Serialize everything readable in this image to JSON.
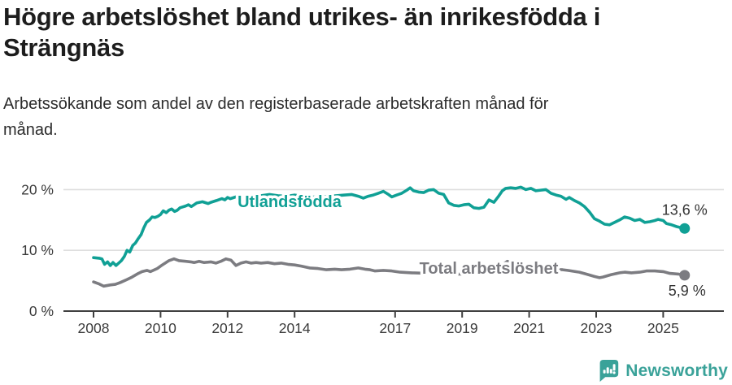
{
  "header": {
    "title_lines": [
      "Högre arbetslöshet bland utrikes- än inrikesfödda i",
      "Strängnäs"
    ],
    "subtitle_lines": [
      "Arbetssökande som andel av den registerbaserade arbetskraften månad för",
      "månad."
    ]
  },
  "chart_data": {
    "type": "line",
    "title": "Högre arbetslöshet bland utrikes- än inrikesfödda i Strängnäs",
    "subtitle": "Arbetssökande som andel av den registerbaserade arbetskraften månad för månad.",
    "xlabel": "",
    "ylabel": "",
    "xlim": [
      2008,
      2025.64
    ],
    "ylim": [
      0,
      21.5
    ],
    "grid": "horizontal-only",
    "x_ticks": [
      2008,
      2010,
      2012,
      2014,
      2017,
      2019,
      2021,
      2023,
      2025
    ],
    "y_ticks": [
      {
        "value": 0,
        "label": "0 %"
      },
      {
        "value": 10,
        "label": "10 %"
      },
      {
        "value": 20,
        "label": "20 %"
      }
    ],
    "colors": {
      "foreign_born": "#10a095",
      "total": "#7c7c81",
      "value_label": "#333333"
    },
    "series": [
      {
        "name": "Utlandsfödda",
        "color": "#10a095",
        "end_label": "13,6 %",
        "end_value": 13.6,
        "points": [
          [
            2008.0,
            8.8
          ],
          [
            2008.17,
            8.7
          ],
          [
            2008.25,
            8.6
          ],
          [
            2008.33,
            7.7
          ],
          [
            2008.42,
            8.1
          ],
          [
            2008.5,
            7.5
          ],
          [
            2008.58,
            8.0
          ],
          [
            2008.67,
            7.5
          ],
          [
            2008.83,
            8.3
          ],
          [
            2008.92,
            9.0
          ],
          [
            2009.0,
            10.0
          ],
          [
            2009.08,
            9.7
          ],
          [
            2009.17,
            10.8
          ],
          [
            2009.25,
            11.2
          ],
          [
            2009.33,
            11.9
          ],
          [
            2009.42,
            12.6
          ],
          [
            2009.5,
            13.7
          ],
          [
            2009.58,
            14.6
          ],
          [
            2009.67,
            15.0
          ],
          [
            2009.75,
            15.5
          ],
          [
            2009.83,
            15.4
          ],
          [
            2009.92,
            15.6
          ],
          [
            2010.0,
            15.9
          ],
          [
            2010.08,
            16.5
          ],
          [
            2010.17,
            16.2
          ],
          [
            2010.25,
            16.6
          ],
          [
            2010.33,
            16.8
          ],
          [
            2010.42,
            16.4
          ],
          [
            2010.5,
            16.6
          ],
          [
            2010.58,
            17.0
          ],
          [
            2010.75,
            17.3
          ],
          [
            2010.83,
            17.5
          ],
          [
            2010.92,
            17.2
          ],
          [
            2011.0,
            17.5
          ],
          [
            2011.08,
            17.8
          ],
          [
            2011.25,
            18.0
          ],
          [
            2011.42,
            17.7
          ],
          [
            2011.5,
            17.9
          ],
          [
            2011.67,
            18.2
          ],
          [
            2011.83,
            18.5
          ],
          [
            2011.92,
            18.3
          ],
          [
            2012.0,
            18.7
          ],
          [
            2012.08,
            18.5
          ],
          [
            2012.25,
            18.8
          ],
          [
            2012.42,
            18.9
          ],
          [
            2012.58,
            19.0
          ],
          [
            2012.75,
            18.8
          ],
          [
            2013.0,
            19.0
          ],
          [
            2013.25,
            19.2
          ],
          [
            2013.5,
            19.0
          ],
          [
            2013.75,
            18.9
          ],
          [
            2014.0,
            19.1
          ],
          [
            2014.25,
            18.9
          ],
          [
            2014.5,
            18.8
          ],
          [
            2014.75,
            18.7
          ],
          [
            2015.0,
            18.9
          ],
          [
            2015.25,
            19.0
          ],
          [
            2015.5,
            19.1
          ],
          [
            2015.7,
            19.2
          ],
          [
            2015.9,
            18.9
          ],
          [
            2016.05,
            18.6
          ],
          [
            2016.2,
            18.9
          ],
          [
            2016.35,
            19.1
          ],
          [
            2016.5,
            19.4
          ],
          [
            2016.65,
            19.7
          ],
          [
            2016.8,
            19.2
          ],
          [
            2016.9,
            18.8
          ],
          [
            2017.05,
            19.1
          ],
          [
            2017.2,
            19.4
          ],
          [
            2017.35,
            19.9
          ],
          [
            2017.45,
            20.3
          ],
          [
            2017.55,
            19.8
          ],
          [
            2017.7,
            19.6
          ],
          [
            2017.85,
            19.5
          ],
          [
            2018.0,
            19.9
          ],
          [
            2018.15,
            20.0
          ],
          [
            2018.3,
            19.4
          ],
          [
            2018.45,
            19.2
          ],
          [
            2018.6,
            17.8
          ],
          [
            2018.75,
            17.4
          ],
          [
            2018.9,
            17.3
          ],
          [
            2019.05,
            17.5
          ],
          [
            2019.2,
            17.6
          ],
          [
            2019.35,
            17.0
          ],
          [
            2019.5,
            16.9
          ],
          [
            2019.65,
            17.1
          ],
          [
            2019.8,
            18.3
          ],
          [
            2019.95,
            17.9
          ],
          [
            2020.1,
            19.0
          ],
          [
            2020.2,
            19.8
          ],
          [
            2020.3,
            20.2
          ],
          [
            2020.45,
            20.3
          ],
          [
            2020.6,
            20.2
          ],
          [
            2020.75,
            20.4
          ],
          [
            2020.9,
            20.0
          ],
          [
            2021.05,
            20.2
          ],
          [
            2021.2,
            19.8
          ],
          [
            2021.35,
            19.9
          ],
          [
            2021.5,
            20.0
          ],
          [
            2021.65,
            19.4
          ],
          [
            2021.8,
            19.1
          ],
          [
            2021.95,
            18.9
          ],
          [
            2022.1,
            18.4
          ],
          [
            2022.2,
            18.7
          ],
          [
            2022.35,
            18.2
          ],
          [
            2022.5,
            17.8
          ],
          [
            2022.65,
            17.2
          ],
          [
            2022.8,
            16.3
          ],
          [
            2022.95,
            15.2
          ],
          [
            2023.1,
            14.8
          ],
          [
            2023.25,
            14.3
          ],
          [
            2023.4,
            14.2
          ],
          [
            2023.55,
            14.6
          ],
          [
            2023.7,
            15.0
          ],
          [
            2023.85,
            15.5
          ],
          [
            2024.0,
            15.3
          ],
          [
            2024.15,
            14.9
          ],
          [
            2024.3,
            15.1
          ],
          [
            2024.45,
            14.6
          ],
          [
            2024.6,
            14.7
          ],
          [
            2024.75,
            14.9
          ],
          [
            2024.85,
            15.1
          ],
          [
            2025.0,
            14.9
          ],
          [
            2025.1,
            14.4
          ],
          [
            2025.25,
            14.2
          ],
          [
            2025.4,
            13.9
          ],
          [
            2025.55,
            13.7
          ],
          [
            2025.64,
            13.6
          ]
        ]
      },
      {
        "name": "Total arbetslöshet",
        "color": "#7c7c81",
        "end_label": "5,9 %",
        "end_value": 5.9,
        "points": [
          [
            2008.0,
            4.8
          ],
          [
            2008.15,
            4.5
          ],
          [
            2008.3,
            4.1
          ],
          [
            2008.5,
            4.3
          ],
          [
            2008.65,
            4.4
          ],
          [
            2008.8,
            4.7
          ],
          [
            2009.0,
            5.2
          ],
          [
            2009.15,
            5.6
          ],
          [
            2009.3,
            6.1
          ],
          [
            2009.45,
            6.5
          ],
          [
            2009.6,
            6.7
          ],
          [
            2009.7,
            6.5
          ],
          [
            2009.9,
            7.0
          ],
          [
            2010.05,
            7.6
          ],
          [
            2010.25,
            8.3
          ],
          [
            2010.4,
            8.6
          ],
          [
            2010.55,
            8.3
          ],
          [
            2010.75,
            8.2
          ],
          [
            2010.9,
            8.1
          ],
          [
            2011.0,
            8.0
          ],
          [
            2011.15,
            8.2
          ],
          [
            2011.3,
            8.0
          ],
          [
            2011.5,
            8.1
          ],
          [
            2011.65,
            7.9
          ],
          [
            2011.8,
            8.2
          ],
          [
            2011.95,
            8.6
          ],
          [
            2012.1,
            8.4
          ],
          [
            2012.25,
            7.5
          ],
          [
            2012.4,
            7.9
          ],
          [
            2012.55,
            8.1
          ],
          [
            2012.7,
            7.9
          ],
          [
            2012.85,
            8.0
          ],
          [
            2013.0,
            7.9
          ],
          [
            2013.2,
            8.0
          ],
          [
            2013.4,
            7.8
          ],
          [
            2013.6,
            7.9
          ],
          [
            2013.8,
            7.7
          ],
          [
            2014.0,
            7.6
          ],
          [
            2014.2,
            7.4
          ],
          [
            2014.45,
            7.1
          ],
          [
            2014.7,
            7.0
          ],
          [
            2014.95,
            6.8
          ],
          [
            2015.2,
            6.9
          ],
          [
            2015.4,
            6.8
          ],
          [
            2015.65,
            6.9
          ],
          [
            2015.9,
            7.1
          ],
          [
            2016.1,
            6.9
          ],
          [
            2016.25,
            6.8
          ],
          [
            2016.4,
            6.6
          ],
          [
            2016.65,
            6.7
          ],
          [
            2016.9,
            6.6
          ],
          [
            2017.15,
            6.4
          ],
          [
            2017.5,
            6.3
          ],
          [
            2018.0,
            6.2
          ],
          [
            2018.5,
            6.1
          ],
          [
            2019.0,
            6.1
          ],
          [
            2019.5,
            6.2
          ],
          [
            2020.0,
            6.9
          ],
          [
            2020.2,
            7.6
          ],
          [
            2020.35,
            8.2
          ],
          [
            2020.5,
            8.0
          ],
          [
            2020.7,
            7.6
          ],
          [
            2021.0,
            7.3
          ],
          [
            2021.3,
            7.0
          ],
          [
            2021.6,
            6.9
          ],
          [
            2022.0,
            6.8
          ],
          [
            2022.15,
            6.7
          ],
          [
            2022.5,
            6.4
          ],
          [
            2022.7,
            6.1
          ],
          [
            2022.95,
            5.7
          ],
          [
            2023.1,
            5.5
          ],
          [
            2023.2,
            5.6
          ],
          [
            2023.45,
            6.0
          ],
          [
            2023.7,
            6.3
          ],
          [
            2023.85,
            6.4
          ],
          [
            2024.05,
            6.3
          ],
          [
            2024.3,
            6.4
          ],
          [
            2024.5,
            6.6
          ],
          [
            2024.75,
            6.6
          ],
          [
            2025.0,
            6.5
          ],
          [
            2025.2,
            6.2
          ],
          [
            2025.45,
            6.1
          ],
          [
            2025.64,
            5.9
          ]
        ]
      }
    ],
    "legend_position": "inline-on-line"
  },
  "footer": {
    "brand": "Newsworthy",
    "brand_color": "#3aa299"
  }
}
